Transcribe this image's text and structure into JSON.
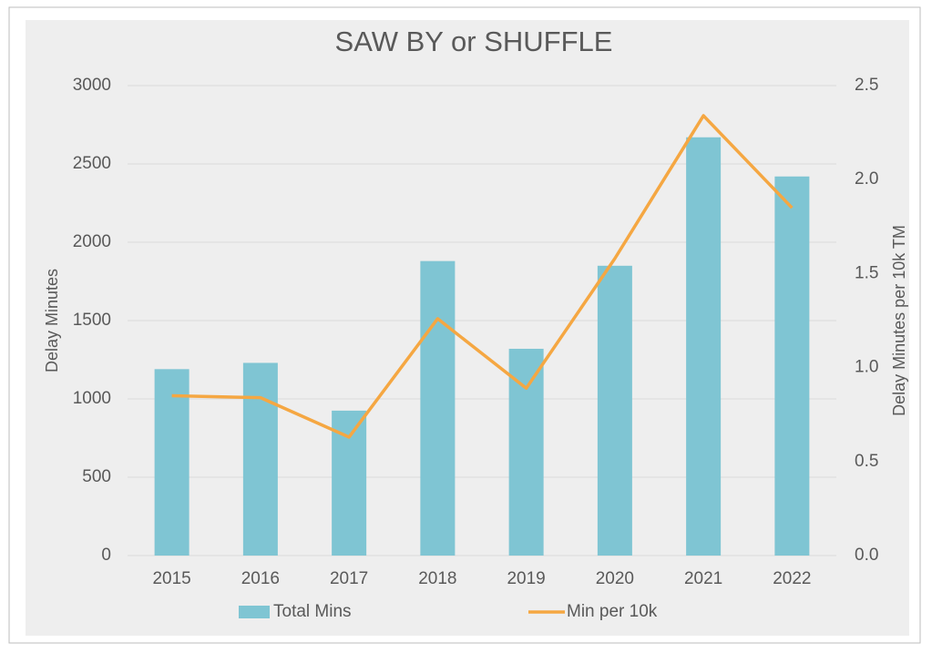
{
  "chart_data": {
    "type": "bar",
    "title": "SAW BY or SHUFFLE",
    "categories": [
      "2015",
      "2016",
      "2017",
      "2018",
      "2019",
      "2020",
      "2021",
      "2022"
    ],
    "y_label": "Delay Minutes",
    "y2_label": "Delay Minutes per 10k TM",
    "ylim": [
      0,
      3000
    ],
    "yticks": [
      0,
      500,
      1000,
      1500,
      2000,
      2500,
      3000
    ],
    "y2lim": [
      0,
      2.5
    ],
    "y2ticks": [
      {
        "value": 0,
        "label": "0.0"
      },
      {
        "value": 0.5,
        "label": "0.5"
      },
      {
        "value": 1,
        "label": "1.0"
      },
      {
        "value": 1.5,
        "label": "1.5"
      },
      {
        "value": 2,
        "label": "2.0"
      },
      {
        "value": 2.5,
        "label": "2.5"
      }
    ],
    "grid": true,
    "legend": "bottom",
    "series": [
      {
        "name": "Total Mins",
        "type": "bar",
        "color": "#7fc5d3",
        "values": [
          1190,
          1230,
          925,
          1880,
          1320,
          1850,
          2670,
          2420
        ]
      },
      {
        "name": "Min per 10k",
        "type": "line",
        "axis": "y2",
        "color": "#f5a742",
        "values": [
          0.85,
          0.84,
          0.63,
          1.26,
          0.89,
          1.58,
          2.34,
          1.85
        ]
      }
    ]
  }
}
